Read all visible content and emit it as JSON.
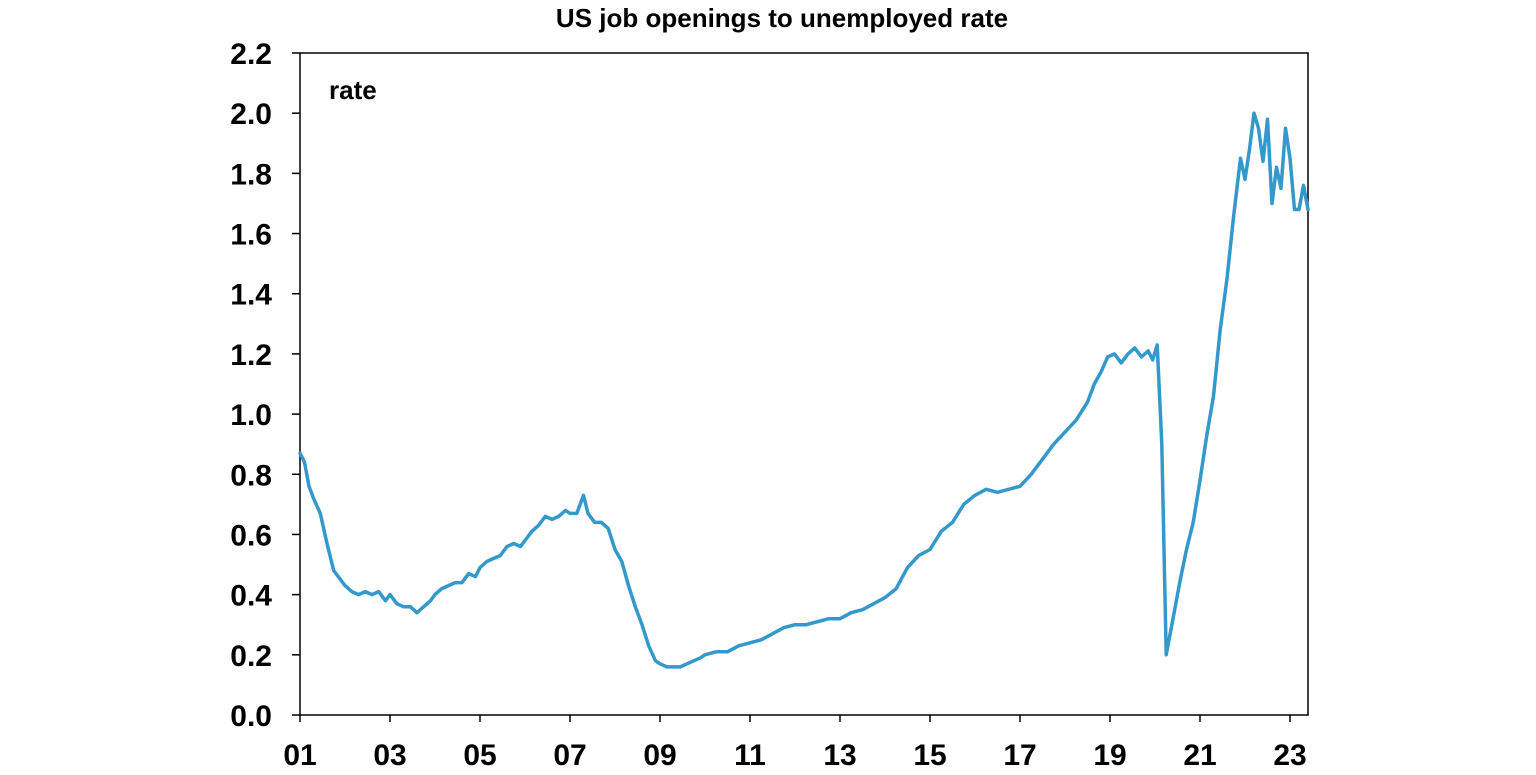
{
  "chart_data": {
    "type": "line",
    "title": "US job openings to unemployed rate",
    "unit_label": "rate",
    "xlabel": "",
    "ylabel": "",
    "x_tick_labels": [
      "01",
      "03",
      "05",
      "07",
      "09",
      "11",
      "13",
      "15",
      "17",
      "19",
      "21",
      "23"
    ],
    "y_tick_labels": [
      "0.0",
      "0.2",
      "0.4",
      "0.6",
      "0.8",
      "1.0",
      "1.2",
      "1.4",
      "1.6",
      "1.8",
      "2.0",
      "2.2"
    ],
    "ylim": [
      0,
      2.2
    ],
    "xlim": [
      2001.0,
      2023.4
    ],
    "grid": false,
    "legend": "none",
    "colors": {
      "line": "#3399cc",
      "axis": "#000000"
    },
    "series": [
      {
        "x": [
          2001.0,
          2001.1,
          2001.2,
          2001.3,
          2001.45,
          2001.6,
          2001.75,
          2001.9,
          2002.0,
          2002.15,
          2002.3,
          2002.45,
          2002.6,
          2002.75,
          2002.9,
          2003.0,
          2003.15,
          2003.3,
          2003.45,
          2003.6,
          2003.75,
          2003.9,
          2004.0,
          2004.15,
          2004.3,
          2004.45,
          2004.6,
          2004.75,
          2004.9,
          2005.0,
          2005.15,
          2005.3,
          2005.45,
          2005.6,
          2005.75,
          2005.9,
          2006.0,
          2006.15,
          2006.3,
          2006.45,
          2006.6,
          2006.75,
          2006.9,
          2007.0,
          2007.15,
          2007.3,
          2007.4,
          2007.55,
          2007.7,
          2007.85,
          2008.0,
          2008.15,
          2008.3,
          2008.45,
          2008.6,
          2008.75,
          2008.9,
          2009.0,
          2009.15,
          2009.3,
          2009.45,
          2009.6,
          2009.75,
          2009.9,
          2010.0,
          2010.25,
          2010.5,
          2010.75,
          2011.0,
          2011.25,
          2011.5,
          2011.75,
          2012.0,
          2012.25,
          2012.5,
          2012.75,
          2013.0,
          2013.25,
          2013.5,
          2013.75,
          2014.0,
          2014.25,
          2014.5,
          2014.75,
          2015.0,
          2015.25,
          2015.5,
          2015.75,
          2016.0,
          2016.25,
          2016.5,
          2016.75,
          2017.0,
          2017.25,
          2017.5,
          2017.75,
          2018.0,
          2018.25,
          2018.5,
          2018.65,
          2018.8,
          2018.95,
          2019.1,
          2019.25,
          2019.4,
          2019.55,
          2019.7,
          2019.85,
          2019.95,
          2020.05,
          2020.15,
          2020.25,
          2020.4,
          2020.55,
          2020.7,
          2020.85,
          2021.0,
          2021.15,
          2021.3,
          2021.45,
          2021.6,
          2021.75,
          2021.9,
          2022.0,
          2022.1,
          2022.2,
          2022.3,
          2022.4,
          2022.5,
          2022.6,
          2022.7,
          2022.8,
          2022.9,
          2023.0,
          2023.1,
          2023.2,
          2023.3,
          2023.4
        ],
        "y": [
          0.87,
          0.84,
          0.76,
          0.72,
          0.67,
          0.57,
          0.48,
          0.45,
          0.43,
          0.41,
          0.4,
          0.41,
          0.4,
          0.41,
          0.38,
          0.4,
          0.37,
          0.36,
          0.36,
          0.34,
          0.36,
          0.38,
          0.4,
          0.42,
          0.43,
          0.44,
          0.44,
          0.47,
          0.46,
          0.49,
          0.51,
          0.52,
          0.53,
          0.56,
          0.57,
          0.56,
          0.58,
          0.61,
          0.63,
          0.66,
          0.65,
          0.66,
          0.68,
          0.67,
          0.67,
          0.73,
          0.67,
          0.64,
          0.64,
          0.62,
          0.55,
          0.51,
          0.43,
          0.36,
          0.3,
          0.23,
          0.18,
          0.17,
          0.16,
          0.16,
          0.16,
          0.17,
          0.18,
          0.19,
          0.2,
          0.21,
          0.21,
          0.23,
          0.24,
          0.25,
          0.27,
          0.29,
          0.3,
          0.3,
          0.31,
          0.32,
          0.32,
          0.34,
          0.35,
          0.37,
          0.39,
          0.42,
          0.49,
          0.53,
          0.55,
          0.61,
          0.64,
          0.7,
          0.73,
          0.75,
          0.74,
          0.75,
          0.76,
          0.8,
          0.85,
          0.9,
          0.94,
          0.98,
          1.04,
          1.1,
          1.14,
          1.19,
          1.2,
          1.17,
          1.2,
          1.22,
          1.19,
          1.21,
          1.18,
          1.23,
          0.9,
          0.2,
          0.32,
          0.44,
          0.55,
          0.64,
          0.78,
          0.93,
          1.06,
          1.28,
          1.45,
          1.66,
          1.85,
          1.78,
          1.88,
          2.0,
          1.95,
          1.84,
          1.98,
          1.7,
          1.82,
          1.75,
          1.95,
          1.85,
          1.68,
          1.68,
          1.76,
          1.68
        ]
      }
    ]
  }
}
